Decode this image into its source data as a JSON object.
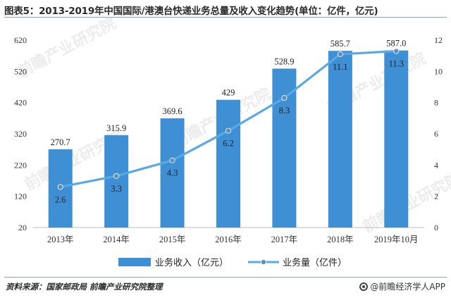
{
  "title": "图表5：2013-2019年中国国际/港澳台快递业务总量及收入变化趋势(单位：亿件，亿元)",
  "source": "资料来源：国家邮政局 前瞻产业研究院整理",
  "brand": "@前瞻经济学人APP",
  "watermark": "前瞻产业研究院",
  "colors": {
    "bar": "#3f8fd5",
    "line": "#5aa9e4",
    "axis_text": "#333333",
    "grid": "#d9d9d9"
  },
  "chart_data": {
    "type": "bar",
    "title": "图表5：2013-2019年中国国际/港澳台快递业务总量及收入变化趋势(单位：亿件，亿元)",
    "categories": [
      "2013年",
      "2014年",
      "2015年",
      "2016年",
      "2017年",
      "2018年",
      "2019年10月"
    ],
    "series": [
      {
        "name": "业务收入（亿元）",
        "type": "bar",
        "axis": "left",
        "values": [
          270.7,
          315.9,
          369.6,
          429,
          528.9,
          585.7,
          587.0
        ],
        "labels": [
          "270.7",
          "315.9",
          "369.6",
          "429",
          "528.9",
          "585.7",
          "587.0"
        ]
      },
      {
        "name": "业务量（亿件）",
        "type": "line",
        "axis": "right",
        "values": [
          2.6,
          3.3,
          4.3,
          6.2,
          8.3,
          11.1,
          11.3
        ],
        "labels": [
          "2.6",
          "3.3",
          "4.3",
          "6.2",
          "8.3",
          "11.1",
          "11.3"
        ]
      }
    ],
    "y_left": {
      "min": 20,
      "max": 620,
      "ticks": [
        20,
        120,
        220,
        320,
        420,
        520,
        620
      ]
    },
    "y_right": {
      "min": 0,
      "max": 12,
      "ticks": [
        0,
        2,
        4,
        6,
        8,
        10,
        12
      ]
    },
    "grid": false,
    "legend": "bottom-center"
  }
}
